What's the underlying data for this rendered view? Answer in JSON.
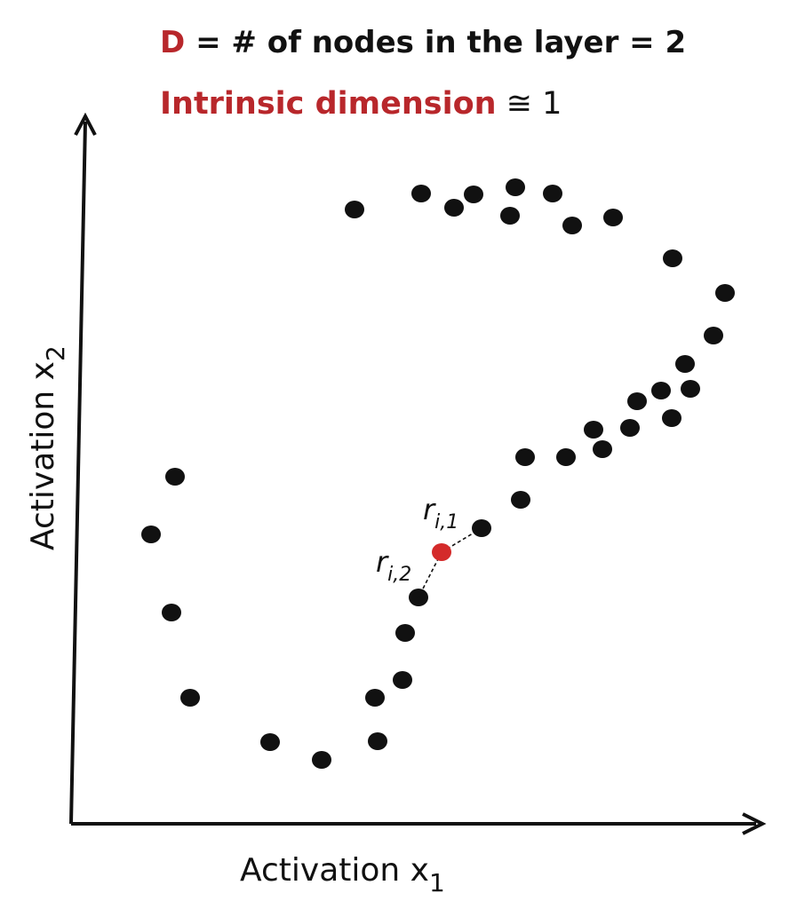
{
  "header": {
    "line1": {
      "symbol": "D",
      "rest": " = # of nodes  in the layer = 2"
    },
    "line2": {
      "term": "Intrinsic dimension",
      "approx": " ≅ 1"
    }
  },
  "axes": {
    "x_label": "Activation x",
    "x_sub": "1",
    "y_label": "Activation x",
    "y_sub": "2"
  },
  "labels": {
    "r1": "r",
    "r1_sub": "i,1",
    "r2": "r",
    "r2_sub": "i,2"
  },
  "colors": {
    "accent": "#b8272b",
    "ink": "#111111",
    "highlight_point": "#d42a2a"
  },
  "points": [
    [
      170,
      602
    ],
    [
      197,
      537
    ],
    [
      193,
      690
    ],
    [
      214,
      786
    ],
    [
      304,
      836
    ],
    [
      362,
      856
    ],
    [
      425,
      835
    ],
    [
      422,
      786
    ],
    [
      453,
      766
    ],
    [
      456,
      713
    ],
    [
      471,
      673
    ],
    [
      542,
      595
    ],
    [
      586,
      563
    ],
    [
      591,
      515
    ],
    [
      637,
      515
    ],
    [
      668,
      484
    ],
    [
      678,
      506
    ],
    [
      709,
      482
    ],
    [
      717,
      452
    ],
    [
      744,
      440
    ],
    [
      756,
      471
    ],
    [
      777,
      438
    ],
    [
      771,
      410
    ],
    [
      803,
      378
    ],
    [
      816,
      330
    ],
    [
      757,
      291
    ],
    [
      690,
      245
    ],
    [
      644,
      254
    ],
    [
      622,
      218
    ],
    [
      580,
      211
    ],
    [
      574,
      243
    ],
    [
      533,
      219
    ],
    [
      511,
      234
    ],
    [
      474,
      218
    ],
    [
      399,
      236
    ]
  ],
  "highlight": [
    497,
    622
  ]
}
